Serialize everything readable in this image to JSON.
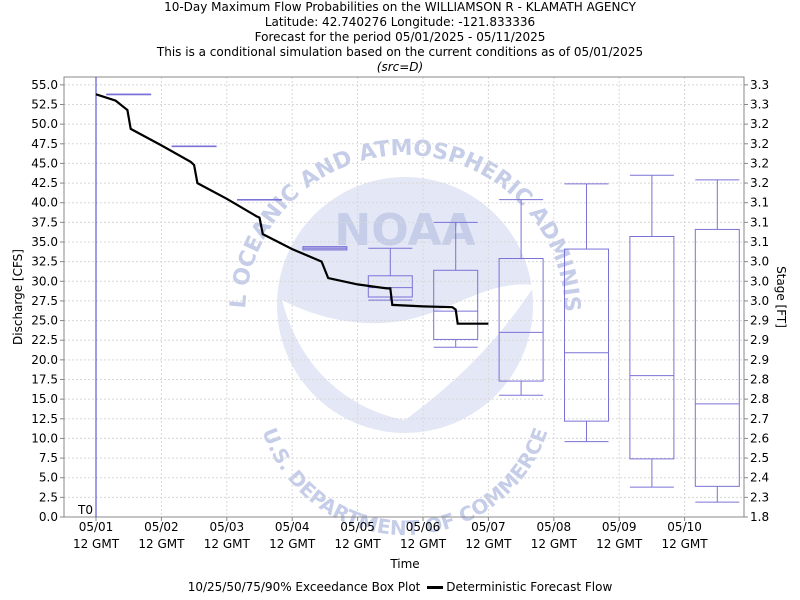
{
  "header": {
    "line1": "10-Day Maximum Flow Probabilities on the WILLIAMSON R - KLAMATH AGENCY",
    "line2": "Latitude: 42.740276 Longitude: -121.833336",
    "line3": "Forecast for the period 05/01/2025 - 05/11/2025",
    "line4": "This is a conditional simulation based on the current conditions as of 05/01/2025",
    "line5": "(src=D)"
  },
  "watermark": {
    "text_top": "NATIONAL OCEANIC AND ATMOSPHERIC ADMINISTRATION",
    "text_bottom": "U.S. DEPARTMENT OF COMMERCE",
    "logo_text": "NOAA"
  },
  "colors": {
    "box": "#7b72d6",
    "deterministic": "#000000",
    "grid": "#d8d8d8",
    "t0_line": "#3b3bd0",
    "watermark_light": "#e4e8f6",
    "watermark_mid": "#c5cde9"
  },
  "chart_data": {
    "type": "box",
    "xlabel": "Time",
    "ylabel": "Discharge [CFS]",
    "y2label": "Stage [FT]",
    "ylim": [
      0,
      56
    ],
    "y_ticks": [
      0.0,
      2.5,
      5.0,
      7.5,
      10.0,
      12.5,
      15.0,
      17.5,
      20.0,
      22.5,
      25.0,
      27.5,
      30.0,
      32.5,
      35.0,
      37.5,
      40.0,
      42.5,
      45.0,
      47.5,
      50.0,
      52.5,
      55.0
    ],
    "y2_ticks": [
      "1.8",
      "2.3",
      "2.4",
      "2.5",
      "2.6",
      "2.7",
      "2.8",
      "2.8",
      "2.9",
      "2.9",
      "2.9",
      "3.0",
      "3.0",
      "3.0",
      "3.1",
      "3.1",
      "3.1",
      "3.2",
      "3.2",
      "3.2",
      "3.2",
      "3.3",
      "3.3"
    ],
    "x_tick_dates": [
      "05/01",
      "05/02",
      "05/03",
      "05/04",
      "05/05",
      "05/06",
      "05/07",
      "05/08",
      "05/09",
      "05/10"
    ],
    "x_tick_time": "12 GMT",
    "t0_label": "T0",
    "grid": true,
    "boxes": [
      {
        "day": 0,
        "p10": 53.8,
        "p25": 53.8,
        "p50": 53.8,
        "p75": 53.8,
        "p90": 53.8
      },
      {
        "day": 1,
        "p10": 47.2,
        "p25": 47.2,
        "p50": 47.2,
        "p75": 47.2,
        "p90": 47.2
      },
      {
        "day": 2,
        "p10": 40.4,
        "p25": 40.4,
        "p50": 40.4,
        "p75": 40.4,
        "p90": 40.4
      },
      {
        "day": 3,
        "p10": 34.0,
        "p25": 34.0,
        "p50": 34.2,
        "p75": 34.4,
        "p90": 34.4
      },
      {
        "day": 4,
        "p10": 27.6,
        "p25": 28.0,
        "p50": 29.2,
        "p75": 30.7,
        "p90": 34.2
      },
      {
        "day": 5,
        "p10": 21.6,
        "p25": 22.6,
        "p50": 26.2,
        "p75": 31.4,
        "p90": 37.5
      },
      {
        "day": 6,
        "p10": 15.5,
        "p25": 17.3,
        "p50": 23.5,
        "p75": 32.9,
        "p90": 40.4
      },
      {
        "day": 7,
        "p10": 9.6,
        "p25": 12.2,
        "p50": 20.9,
        "p75": 34.1,
        "p90": 42.4
      },
      {
        "day": 8,
        "p10": 3.8,
        "p25": 7.4,
        "p50": 18.0,
        "p75": 35.7,
        "p90": 43.5
      },
      {
        "day": 9,
        "p10": 1.9,
        "p25": 3.9,
        "p50": 14.4,
        "p75": 36.6,
        "p90": 42.9
      }
    ],
    "deterministic": [
      {
        "day": 0.0,
        "cfs": 53.8
      },
      {
        "day": 0.3,
        "cfs": 53.0
      },
      {
        "day": 0.48,
        "cfs": 51.8
      },
      {
        "day": 0.53,
        "cfs": 49.4
      },
      {
        "day": 1.0,
        "cfs": 47.3
      },
      {
        "day": 1.45,
        "cfs": 45.2
      },
      {
        "day": 1.5,
        "cfs": 44.8
      },
      {
        "day": 1.55,
        "cfs": 42.5
      },
      {
        "day": 2.0,
        "cfs": 40.5
      },
      {
        "day": 2.45,
        "cfs": 38.3
      },
      {
        "day": 2.5,
        "cfs": 38.1
      },
      {
        "day": 2.55,
        "cfs": 36.0
      },
      {
        "day": 3.0,
        "cfs": 34.1
      },
      {
        "day": 3.45,
        "cfs": 32.5
      },
      {
        "day": 3.55,
        "cfs": 30.4
      },
      {
        "day": 4.0,
        "cfs": 29.6
      },
      {
        "day": 4.45,
        "cfs": 29.1
      },
      {
        "day": 4.5,
        "cfs": 29.1
      },
      {
        "day": 4.53,
        "cfs": 27.0
      },
      {
        "day": 5.0,
        "cfs": 26.8
      },
      {
        "day": 5.45,
        "cfs": 26.7
      },
      {
        "day": 5.5,
        "cfs": 26.4
      },
      {
        "day": 5.53,
        "cfs": 24.6
      },
      {
        "day": 6.0,
        "cfs": 24.6
      }
    ]
  },
  "legend": {
    "box_label": "10/25/50/75/90% Exceedance Box Plot",
    "line_label": "Deterministic Forecast Flow"
  }
}
